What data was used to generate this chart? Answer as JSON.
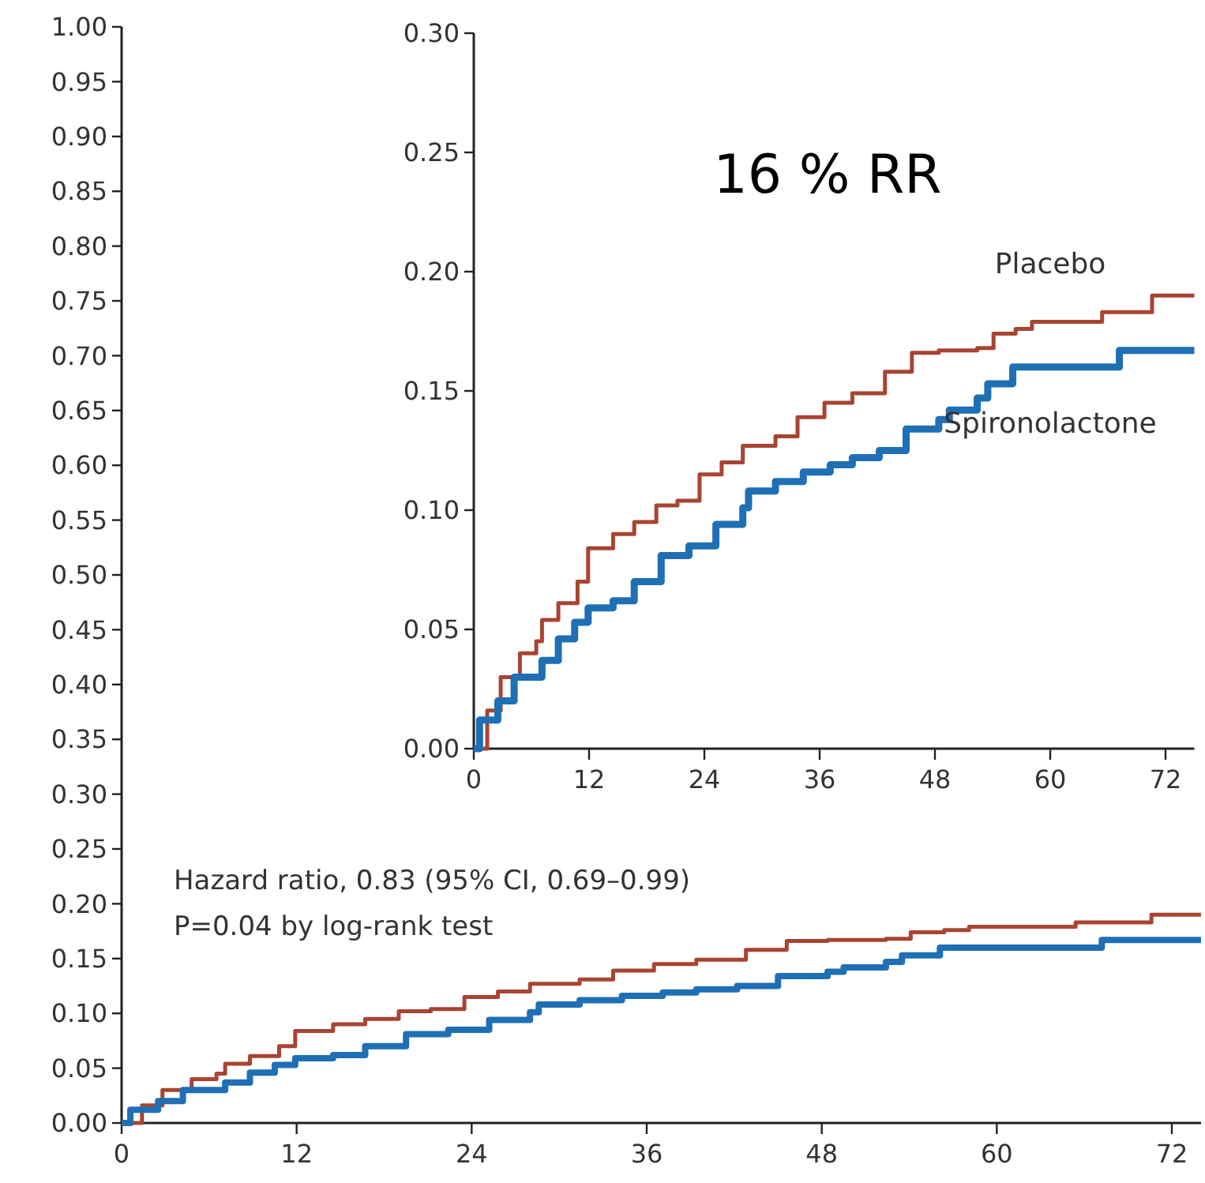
{
  "chart_data": [
    {
      "type": "step",
      "annotations": [
        "Hazard ratio, 0.83 (95% CI, 0.69–0.99)",
        "P=0.04 by log-rank test"
      ],
      "xlim": [
        0,
        74
      ],
      "xticks": [
        0,
        12,
        24,
        36,
        48,
        60,
        72
      ],
      "ylim": [
        0,
        1
      ],
      "yticks": [
        {
          "value": 0,
          "label": "0.00"
        },
        {
          "value": 0.05,
          "label": "0.05"
        },
        {
          "value": 0.1,
          "label": "0.10"
        },
        {
          "value": 0.15,
          "label": "0.15"
        },
        {
          "value": 0.2,
          "label": "0.20"
        },
        {
          "value": 0.25,
          "label": "0.25"
        },
        {
          "value": 0.3,
          "label": "0.30"
        },
        {
          "value": 0.35,
          "label": "0.35"
        },
        {
          "value": 0.4,
          "label": "0.40"
        },
        {
          "value": 0.45,
          "label": "0.45"
        },
        {
          "value": 0.5,
          "label": "0.50"
        },
        {
          "value": 0.55,
          "label": "0.55"
        },
        {
          "value": 0.6,
          "label": "0.60"
        },
        {
          "value": 0.65,
          "label": "0.65"
        },
        {
          "value": 0.7,
          "label": "0.70"
        },
        {
          "value": 0.75,
          "label": "0.75"
        },
        {
          "value": 0.8,
          "label": "0.80"
        },
        {
          "value": 0.85,
          "label": "0.85"
        },
        {
          "value": 0.9,
          "label": "0.90"
        },
        {
          "value": 0.95,
          "label": "0.95"
        },
        {
          "value": 1,
          "label": "1.00"
        }
      ],
      "grid": false,
      "series": [
        {
          "color": "#a84432",
          "x": [
            0,
            1.4,
            2.8,
            4.8,
            6.5,
            7.1,
            8.8,
            10.8,
            11.9,
            14.5,
            16.7,
            19,
            21.2,
            23.5,
            25.8,
            28,
            31.4,
            33.7,
            36.5,
            39.4,
            42.8,
            45.6,
            48.4,
            52.4,
            54.1,
            56.4,
            58.1,
            65.4,
            70.6,
            74
          ],
          "values": [
            0,
            0.016,
            0.03,
            0.04,
            0.045,
            0.054,
            0.061,
            0.07,
            0.084,
            0.09,
            0.095,
            0.102,
            0.104,
            0.115,
            0.12,
            0.127,
            0.131,
            0.139,
            0.145,
            0.149,
            0.158,
            0.166,
            0.167,
            0.168,
            0.174,
            0.176,
            0.179,
            0.183,
            0.19,
            0.19
          ]
        },
        {
          "color": "#1f6fb4",
          "x": [
            0,
            0.6,
            2.5,
            4.2,
            7.1,
            8.8,
            10.5,
            11.9,
            14.5,
            16.7,
            19.5,
            22.4,
            25.2,
            28,
            28.6,
            31.4,
            34.3,
            37.1,
            39.4,
            42.2,
            45,
            48.4,
            49.5,
            52.4,
            53.5,
            56.1,
            67.2,
            74
          ],
          "values": [
            0,
            0.012,
            0.02,
            0.03,
            0.037,
            0.046,
            0.053,
            0.059,
            0.062,
            0.07,
            0.081,
            0.085,
            0.094,
            0.101,
            0.108,
            0.112,
            0.116,
            0.119,
            0.122,
            0.125,
            0.134,
            0.138,
            0.142,
            0.147,
            0.153,
            0.16,
            0.167,
            0.167
          ]
        }
      ]
    },
    {
      "type": "step",
      "annotations": [
        "16 % RR"
      ],
      "xlim": [
        0,
        75
      ],
      "xticks": [
        0,
        12,
        24,
        36,
        48,
        60,
        72
      ],
      "ylim": [
        0,
        0.3
      ],
      "yticks": [
        {
          "value": 0,
          "label": "0.00"
        },
        {
          "value": 0.05,
          "label": "0.05"
        },
        {
          "value": 0.1,
          "label": "0.10"
        },
        {
          "value": 0.15,
          "label": "0.15"
        },
        {
          "value": 0.2,
          "label": "0.20"
        },
        {
          "value": 0.25,
          "label": "0.25"
        },
        {
          "value": 0.3,
          "label": "0.30"
        }
      ],
      "grid": false,
      "series": [
        {
          "name": "Placebo",
          "color": "#a84432",
          "x": [
            0,
            1.4,
            2.8,
            4.8,
            6.5,
            7.1,
            8.8,
            10.8,
            11.9,
            14.5,
            16.7,
            19,
            21.2,
            23.5,
            25.8,
            28,
            31.4,
            33.7,
            36.5,
            39.4,
            42.8,
            45.6,
            48.4,
            52.4,
            54.1,
            56.4,
            58.1,
            65.4,
            70.6,
            75
          ],
          "values": [
            0,
            0.016,
            0.03,
            0.04,
            0.045,
            0.054,
            0.061,
            0.07,
            0.084,
            0.09,
            0.095,
            0.102,
            0.104,
            0.115,
            0.12,
            0.127,
            0.131,
            0.139,
            0.145,
            0.149,
            0.158,
            0.166,
            0.167,
            0.168,
            0.174,
            0.176,
            0.179,
            0.183,
            0.19,
            0.19
          ]
        },
        {
          "name": "Spironolactone",
          "color": "#1f6fb4",
          "x": [
            0,
            0.6,
            2.5,
            4.2,
            7.1,
            8.8,
            10.5,
            11.9,
            14.5,
            16.7,
            19.5,
            22.4,
            25.2,
            28,
            28.6,
            31.4,
            34.3,
            37.1,
            39.4,
            42.2,
            45,
            48.4,
            49.5,
            52.4,
            53.5,
            56.1,
            67.2,
            75
          ],
          "values": [
            0,
            0.012,
            0.02,
            0.03,
            0.037,
            0.046,
            0.053,
            0.059,
            0.062,
            0.07,
            0.081,
            0.085,
            0.094,
            0.101,
            0.108,
            0.112,
            0.116,
            0.119,
            0.122,
            0.125,
            0.134,
            0.138,
            0.142,
            0.147,
            0.153,
            0.16,
            0.167,
            0.167
          ]
        }
      ]
    }
  ]
}
